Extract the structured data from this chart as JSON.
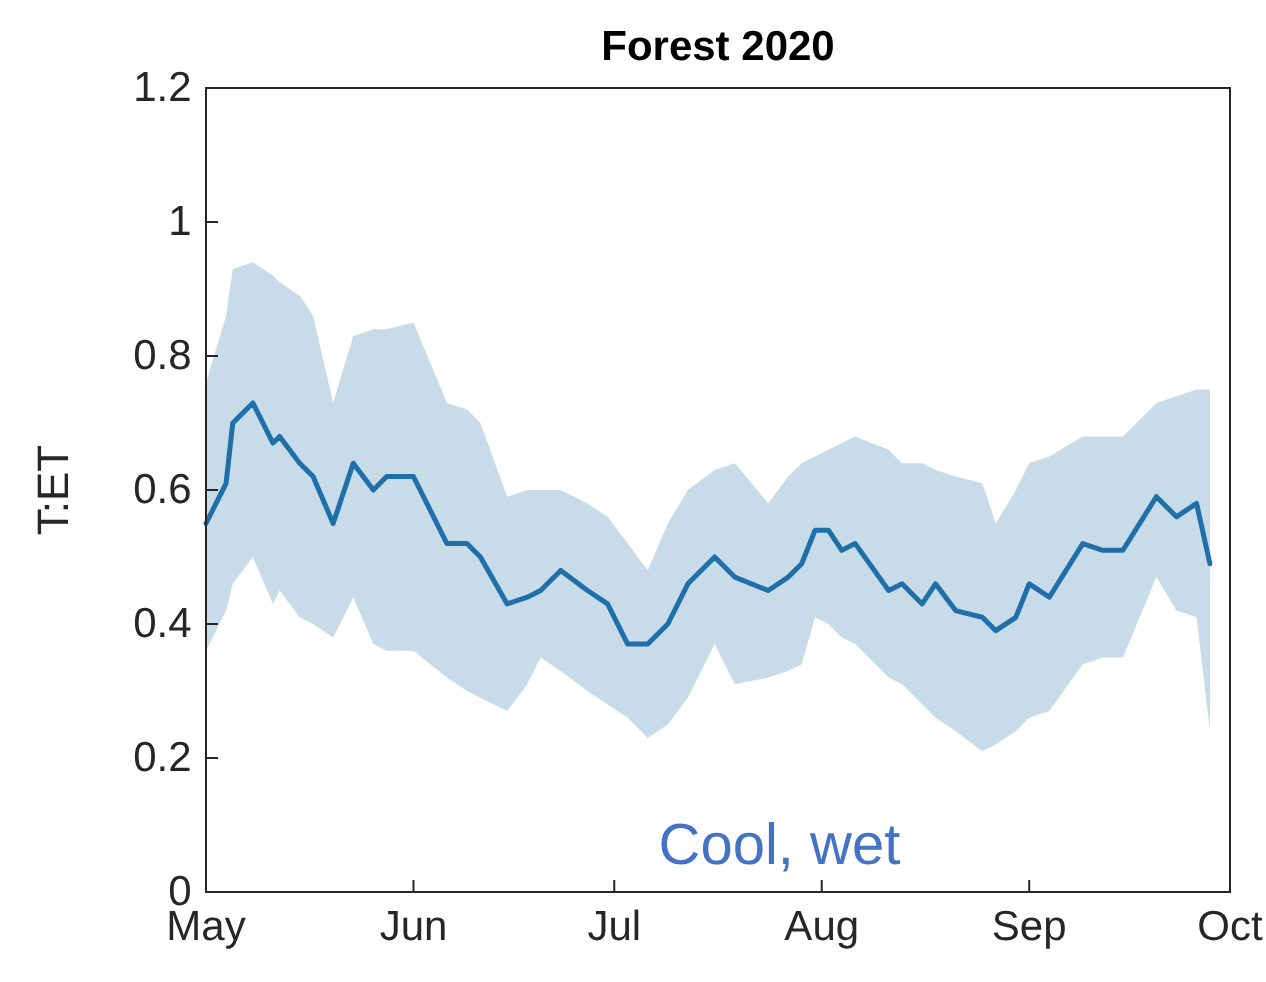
{
  "chart_data": {
    "type": "line",
    "title": "Forest 2020",
    "ylabel": "T:ET",
    "annotations": [
      "Cool, wet"
    ],
    "xlim": [
      "2020-05-01",
      "2020-10-01"
    ],
    "xticks": [
      {
        "value": "2020-05-01",
        "label": "May"
      },
      {
        "value": "2020-06-01",
        "label": "Jun"
      },
      {
        "value": "2020-07-01",
        "label": "Jul"
      },
      {
        "value": "2020-08-01",
        "label": "Aug"
      },
      {
        "value": "2020-09-01",
        "label": "Sep"
      },
      {
        "value": "2020-10-01",
        "label": "Oct"
      }
    ],
    "ylim": [
      0,
      1.2
    ],
    "yticks": [
      0,
      0.2,
      0.4,
      0.6,
      0.8,
      1,
      1.2
    ],
    "line_style": "solid",
    "marker": "none",
    "series": [
      {
        "color": "#1f6fa8",
        "x": [
          "2020-05-01",
          "2020-05-04",
          "2020-05-05",
          "2020-05-08",
          "2020-05-11",
          "2020-05-12",
          "2020-05-15",
          "2020-05-17",
          "2020-05-20",
          "2020-05-23",
          "2020-05-26",
          "2020-05-28",
          "2020-06-01",
          "2020-06-06",
          "2020-06-09",
          "2020-06-11",
          "2020-06-15",
          "2020-06-18",
          "2020-06-20",
          "2020-06-23",
          "2020-06-27",
          "2020-06-30",
          "2020-07-03",
          "2020-07-06",
          "2020-07-09",
          "2020-07-12",
          "2020-07-16",
          "2020-07-19",
          "2020-07-24",
          "2020-07-27",
          "2020-07-29",
          "2020-07-31",
          "2020-08-02",
          "2020-08-04",
          "2020-08-06",
          "2020-08-11",
          "2020-08-13",
          "2020-08-16",
          "2020-08-18",
          "2020-08-21",
          "2020-08-25",
          "2020-08-27",
          "2020-08-30",
          "2020-09-01",
          "2020-09-04",
          "2020-09-09",
          "2020-09-12",
          "2020-09-15",
          "2020-09-20",
          "2020-09-23",
          "2020-09-26",
          "2020-09-28"
        ],
        "values": [
          0.55,
          0.61,
          0.7,
          0.73,
          0.67,
          0.68,
          0.64,
          0.62,
          0.55,
          0.64,
          0.6,
          0.62,
          0.62,
          0.52,
          0.52,
          0.5,
          0.43,
          0.44,
          0.45,
          0.48,
          0.45,
          0.43,
          0.37,
          0.37,
          0.4,
          0.46,
          0.5,
          0.47,
          0.45,
          0.47,
          0.49,
          0.54,
          0.54,
          0.51,
          0.52,
          0.45,
          0.46,
          0.43,
          0.46,
          0.42,
          0.41,
          0.39,
          0.41,
          0.46,
          0.44,
          0.52,
          0.51,
          0.51,
          0.59,
          0.56,
          0.58,
          0.49
        ],
        "upper": [
          0.76,
          0.86,
          0.93,
          0.94,
          0.92,
          0.91,
          0.89,
          0.86,
          0.73,
          0.83,
          0.84,
          0.84,
          0.85,
          0.73,
          0.72,
          0.7,
          0.59,
          0.6,
          0.6,
          0.6,
          0.58,
          0.56,
          0.52,
          0.48,
          0.55,
          0.6,
          0.63,
          0.64,
          0.58,
          0.62,
          0.64,
          0.65,
          0.66,
          0.67,
          0.68,
          0.66,
          0.64,
          0.64,
          0.63,
          0.62,
          0.61,
          0.55,
          0.6,
          0.64,
          0.65,
          0.68,
          0.68,
          0.68,
          0.73,
          0.74,
          0.75,
          0.75
        ],
        "lower": [
          0.36,
          0.42,
          0.46,
          0.5,
          0.43,
          0.45,
          0.41,
          0.4,
          0.38,
          0.44,
          0.37,
          0.36,
          0.36,
          0.32,
          0.3,
          0.29,
          0.27,
          0.31,
          0.35,
          0.33,
          0.3,
          0.28,
          0.26,
          0.23,
          0.25,
          0.29,
          0.37,
          0.31,
          0.32,
          0.33,
          0.34,
          0.41,
          0.4,
          0.38,
          0.37,
          0.32,
          0.31,
          0.28,
          0.26,
          0.24,
          0.21,
          0.22,
          0.24,
          0.26,
          0.27,
          0.34,
          0.35,
          0.35,
          0.47,
          0.42,
          0.41,
          0.24
        ]
      }
    ]
  }
}
